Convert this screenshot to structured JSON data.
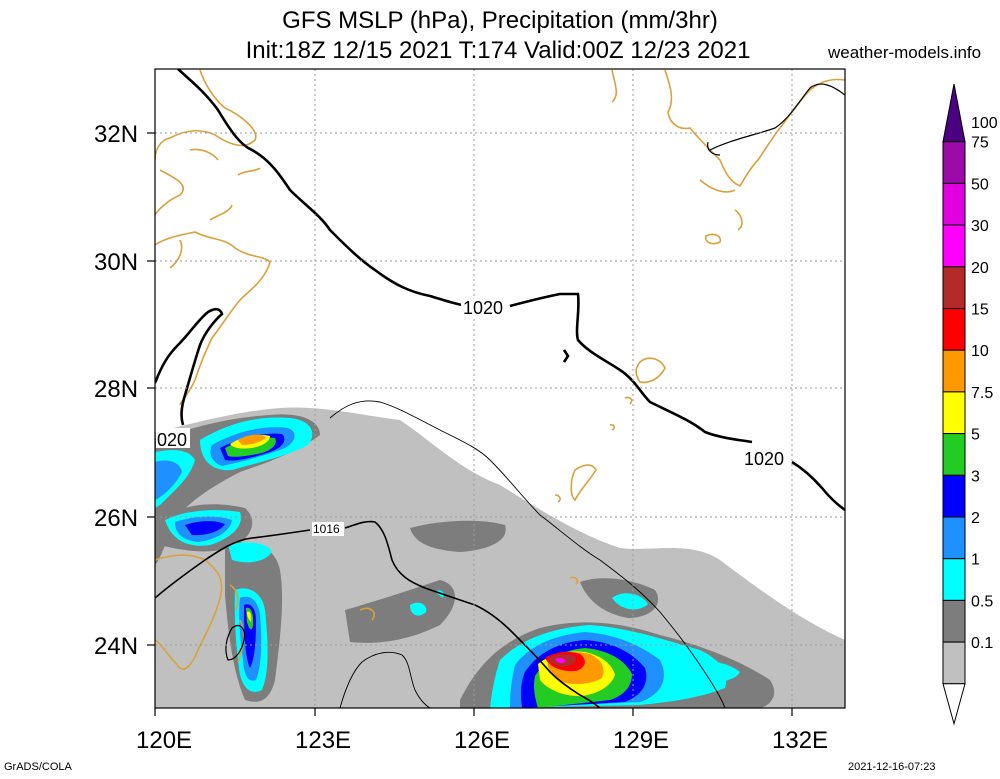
{
  "header": {
    "title_line1": "GFS MSLP (hPa), Precipitation (mm/3hr)",
    "title_line2": "Init:18Z 12/15 2021 T:174 Valid:00Z 12/23 2021",
    "site": "weather-models.info"
  },
  "map": {
    "lon_labels": [
      "120E",
      "123E",
      "126E",
      "129E",
      "132E"
    ],
    "lat_labels": [
      "32N",
      "30N",
      "28N",
      "26N",
      "24N"
    ],
    "isobar_labels": [
      "1020",
      "1020",
      "020",
      "1016"
    ],
    "colors": {
      "coastline": "#d9a13a",
      "isobar": "#000000",
      "grid": "#9a9a9a"
    }
  },
  "colorbar": {
    "levels": [
      "100",
      "75",
      "50",
      "30",
      "20",
      "15",
      "10",
      "7.5",
      "5",
      "3",
      "2",
      "1",
      "0.5",
      "0.1"
    ],
    "colors": [
      "#4b0082",
      "#9c0aa8",
      "#e000e0",
      "#ff00ff",
      "#b22a2a",
      "#ff0000",
      "#ff9900",
      "#ffff00",
      "#23cc23",
      "#0000ff",
      "#1e90ff",
      "#00ffff",
      "#7d7d7d",
      "#c0c0c0"
    ]
  },
  "footer": {
    "left": "GrADS/COLA",
    "right": "2021-12-16-07:23"
  }
}
